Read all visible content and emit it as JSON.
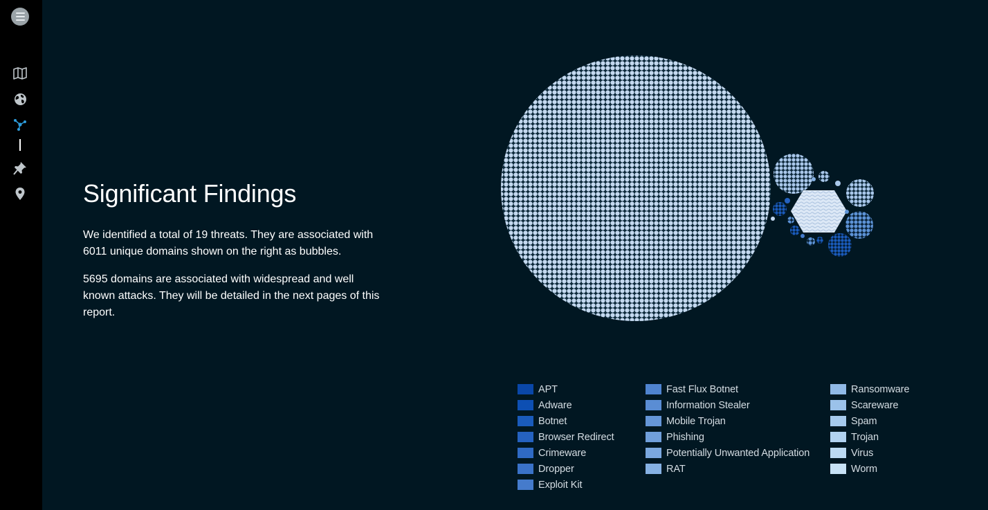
{
  "sidebar": {
    "menu_icon": "hamburger-menu-icon",
    "nav": [
      {
        "name": "map-icon"
      },
      {
        "name": "globe-icon"
      },
      {
        "name": "network-graph-icon",
        "active": true,
        "color": "#2d9cdb"
      },
      {
        "name": "pin-icon"
      },
      {
        "name": "location-marker-icon"
      }
    ]
  },
  "findings": {
    "title": "Significant Findings",
    "paragraph1": "We identified a total of 19 threats. They are associated with 6011 unique domains shown on the right as bubbles.",
    "paragraph2": "5695 domains are associated with widespread and well known attacks. They will be detailed in the next pages of this report."
  },
  "legend": {
    "columns": [
      [
        {
          "label": "APT",
          "color": "#0a47a8"
        },
        {
          "label": "Adware",
          "color": "#0d4fb3"
        },
        {
          "label": "Botnet",
          "color": "#1a5bbb"
        },
        {
          "label": "Browser Redirect",
          "color": "#2562c0"
        },
        {
          "label": "Crimeware",
          "color": "#2f6ac4"
        },
        {
          "label": "Dropper",
          "color": "#3a72c8"
        },
        {
          "label": "Exploit Kit",
          "color": "#457bcc"
        }
      ],
      [
        {
          "label": "Fast Flux Botnet",
          "color": "#4f84d0"
        },
        {
          "label": "Information Stealer",
          "color": "#5a8dd4"
        },
        {
          "label": "Mobile Trojan",
          "color": "#6596d8"
        },
        {
          "label": "Phishing",
          "color": "#709fdb"
        },
        {
          "label": "Potentially Unwanted Application",
          "color": "#7ba8df"
        },
        {
          "label": "RAT",
          "color": "#86b1e3"
        }
      ],
      [
        {
          "label": "Ransomware",
          "color": "#90b9e6"
        },
        {
          "label": "Scareware",
          "color": "#9bc2ea"
        },
        {
          "label": "Spam",
          "color": "#a6caed"
        },
        {
          "label": "Trojan",
          "color": "#b1d2f0"
        },
        {
          "label": "Virus",
          "color": "#bcdaf3"
        },
        {
          "label": "Worm",
          "color": "#c7e2f6"
        }
      ]
    ]
  }
}
